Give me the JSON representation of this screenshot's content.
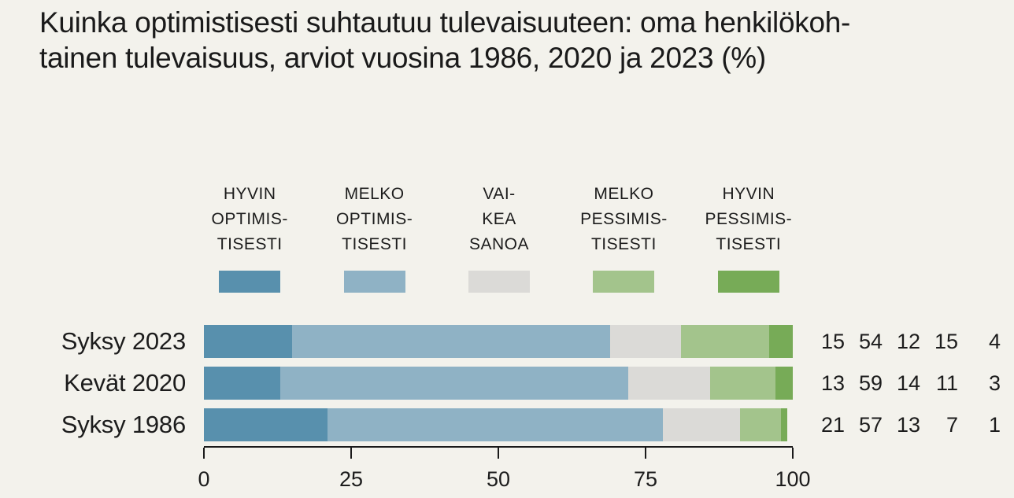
{
  "background": "#F3F2EC",
  "text_color": "#1C1C1C",
  "title": "Kuinka optimistisesti suhtautuu tulevaisuuteen: oma henkilökoh-\ntainen tulevaisuus, arviot vuosina 1986, 2020 ja 2023 (%)",
  "chart_data": {
    "type": "bar",
    "stacked": true,
    "orientation": "horizontal",
    "grid": false,
    "legend_position": "top",
    "categories": [
      "Syksy 2023",
      "Kevät 2020",
      "Syksy 1986"
    ],
    "series": [
      {
        "name": "HYVIN OPTIMISTISESTI",
        "legend_label": "HYVIN\nOPTIMIS-\nTISESTI",
        "color": "#5890AD",
        "values": [
          15,
          13,
          21
        ]
      },
      {
        "name": "MELKO OPTIMISTISESTI",
        "legend_label": "MELKO\nOPTIMIS-\nTISESTI",
        "color": "#8FB2C5",
        "values": [
          54,
          59,
          57
        ]
      },
      {
        "name": "VAIKEA SANOA",
        "legend_label": "VAI-\nKEA\nSANOA",
        "color": "#DBDAD7",
        "values": [
          12,
          14,
          13
        ]
      },
      {
        "name": "MELKO PESSIMISTISESTI",
        "legend_label": "MELKO\nPESSIMIS-\nTISESTI",
        "color": "#A3C48C",
        "values": [
          15,
          11,
          7
        ]
      },
      {
        "name": "HYVIN PESSIMISTISESTI",
        "legend_label": "HYVIN\nPESSIMIS-\nTISESTI",
        "color": "#77AB57",
        "values": [
          4,
          3,
          1
        ]
      }
    ],
    "value_annotations": [
      [
        15,
        54,
        12,
        15,
        4
      ],
      [
        13,
        59,
        14,
        11,
        3
      ],
      [
        21,
        57,
        13,
        7,
        1
      ]
    ],
    "x_axis": {
      "min": 0,
      "max": 100,
      "ticks": [
        0,
        25,
        50,
        75,
        100
      ]
    }
  }
}
